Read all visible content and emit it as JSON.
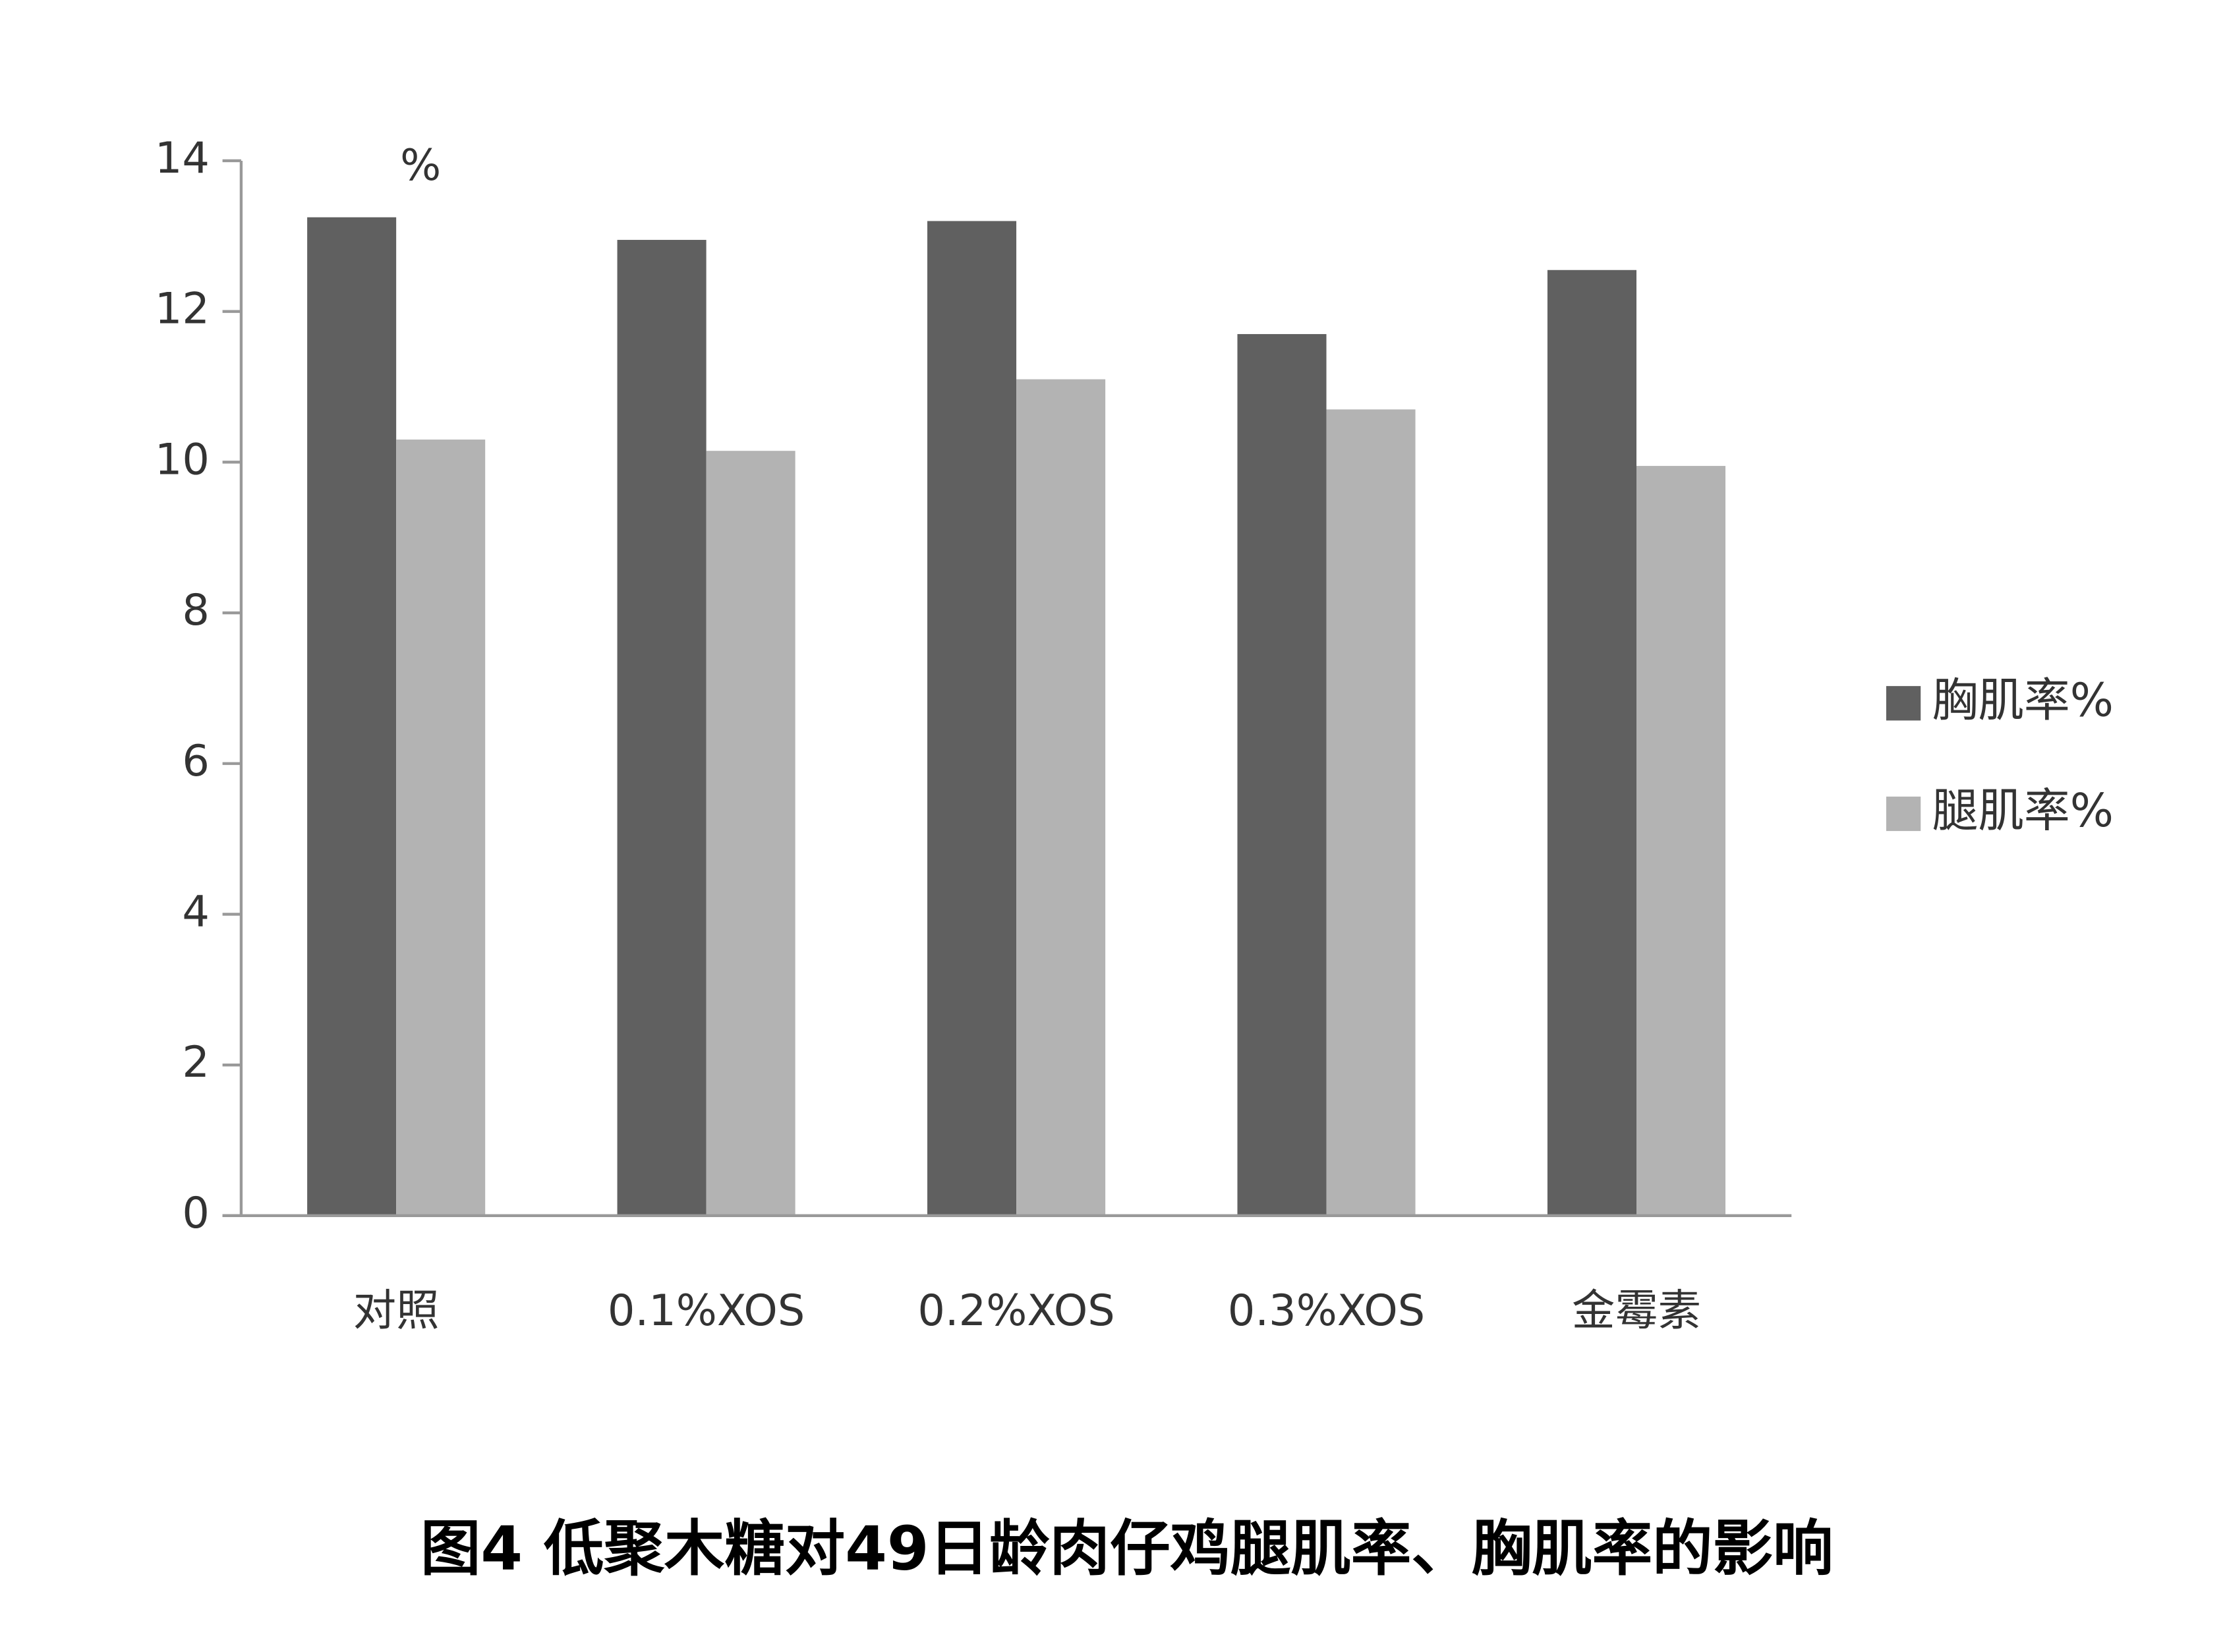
{
  "chart_data": {
    "type": "bar",
    "title": "图4 低聚木糖对49日龄肉仔鸡腿肌率、胸肌率的影响",
    "y_unit_label": "%",
    "categories": [
      "对照",
      "0.1%XOS",
      "0.2%XOS",
      "0.3%XOS",
      "金霉素"
    ],
    "series": [
      {
        "name": "胸肌率%",
        "color": "#606060",
        "values": [
          13.25,
          12.95,
          13.2,
          11.7,
          12.55
        ]
      },
      {
        "name": "腿肌率%",
        "color": "#b3b3b3",
        "values": [
          10.3,
          10.15,
          11.1,
          10.7,
          9.95
        ]
      }
    ],
    "ylim": [
      0,
      14
    ],
    "yticks": [
      0,
      2,
      4,
      6,
      8,
      10,
      12,
      14
    ],
    "legend": "right"
  }
}
